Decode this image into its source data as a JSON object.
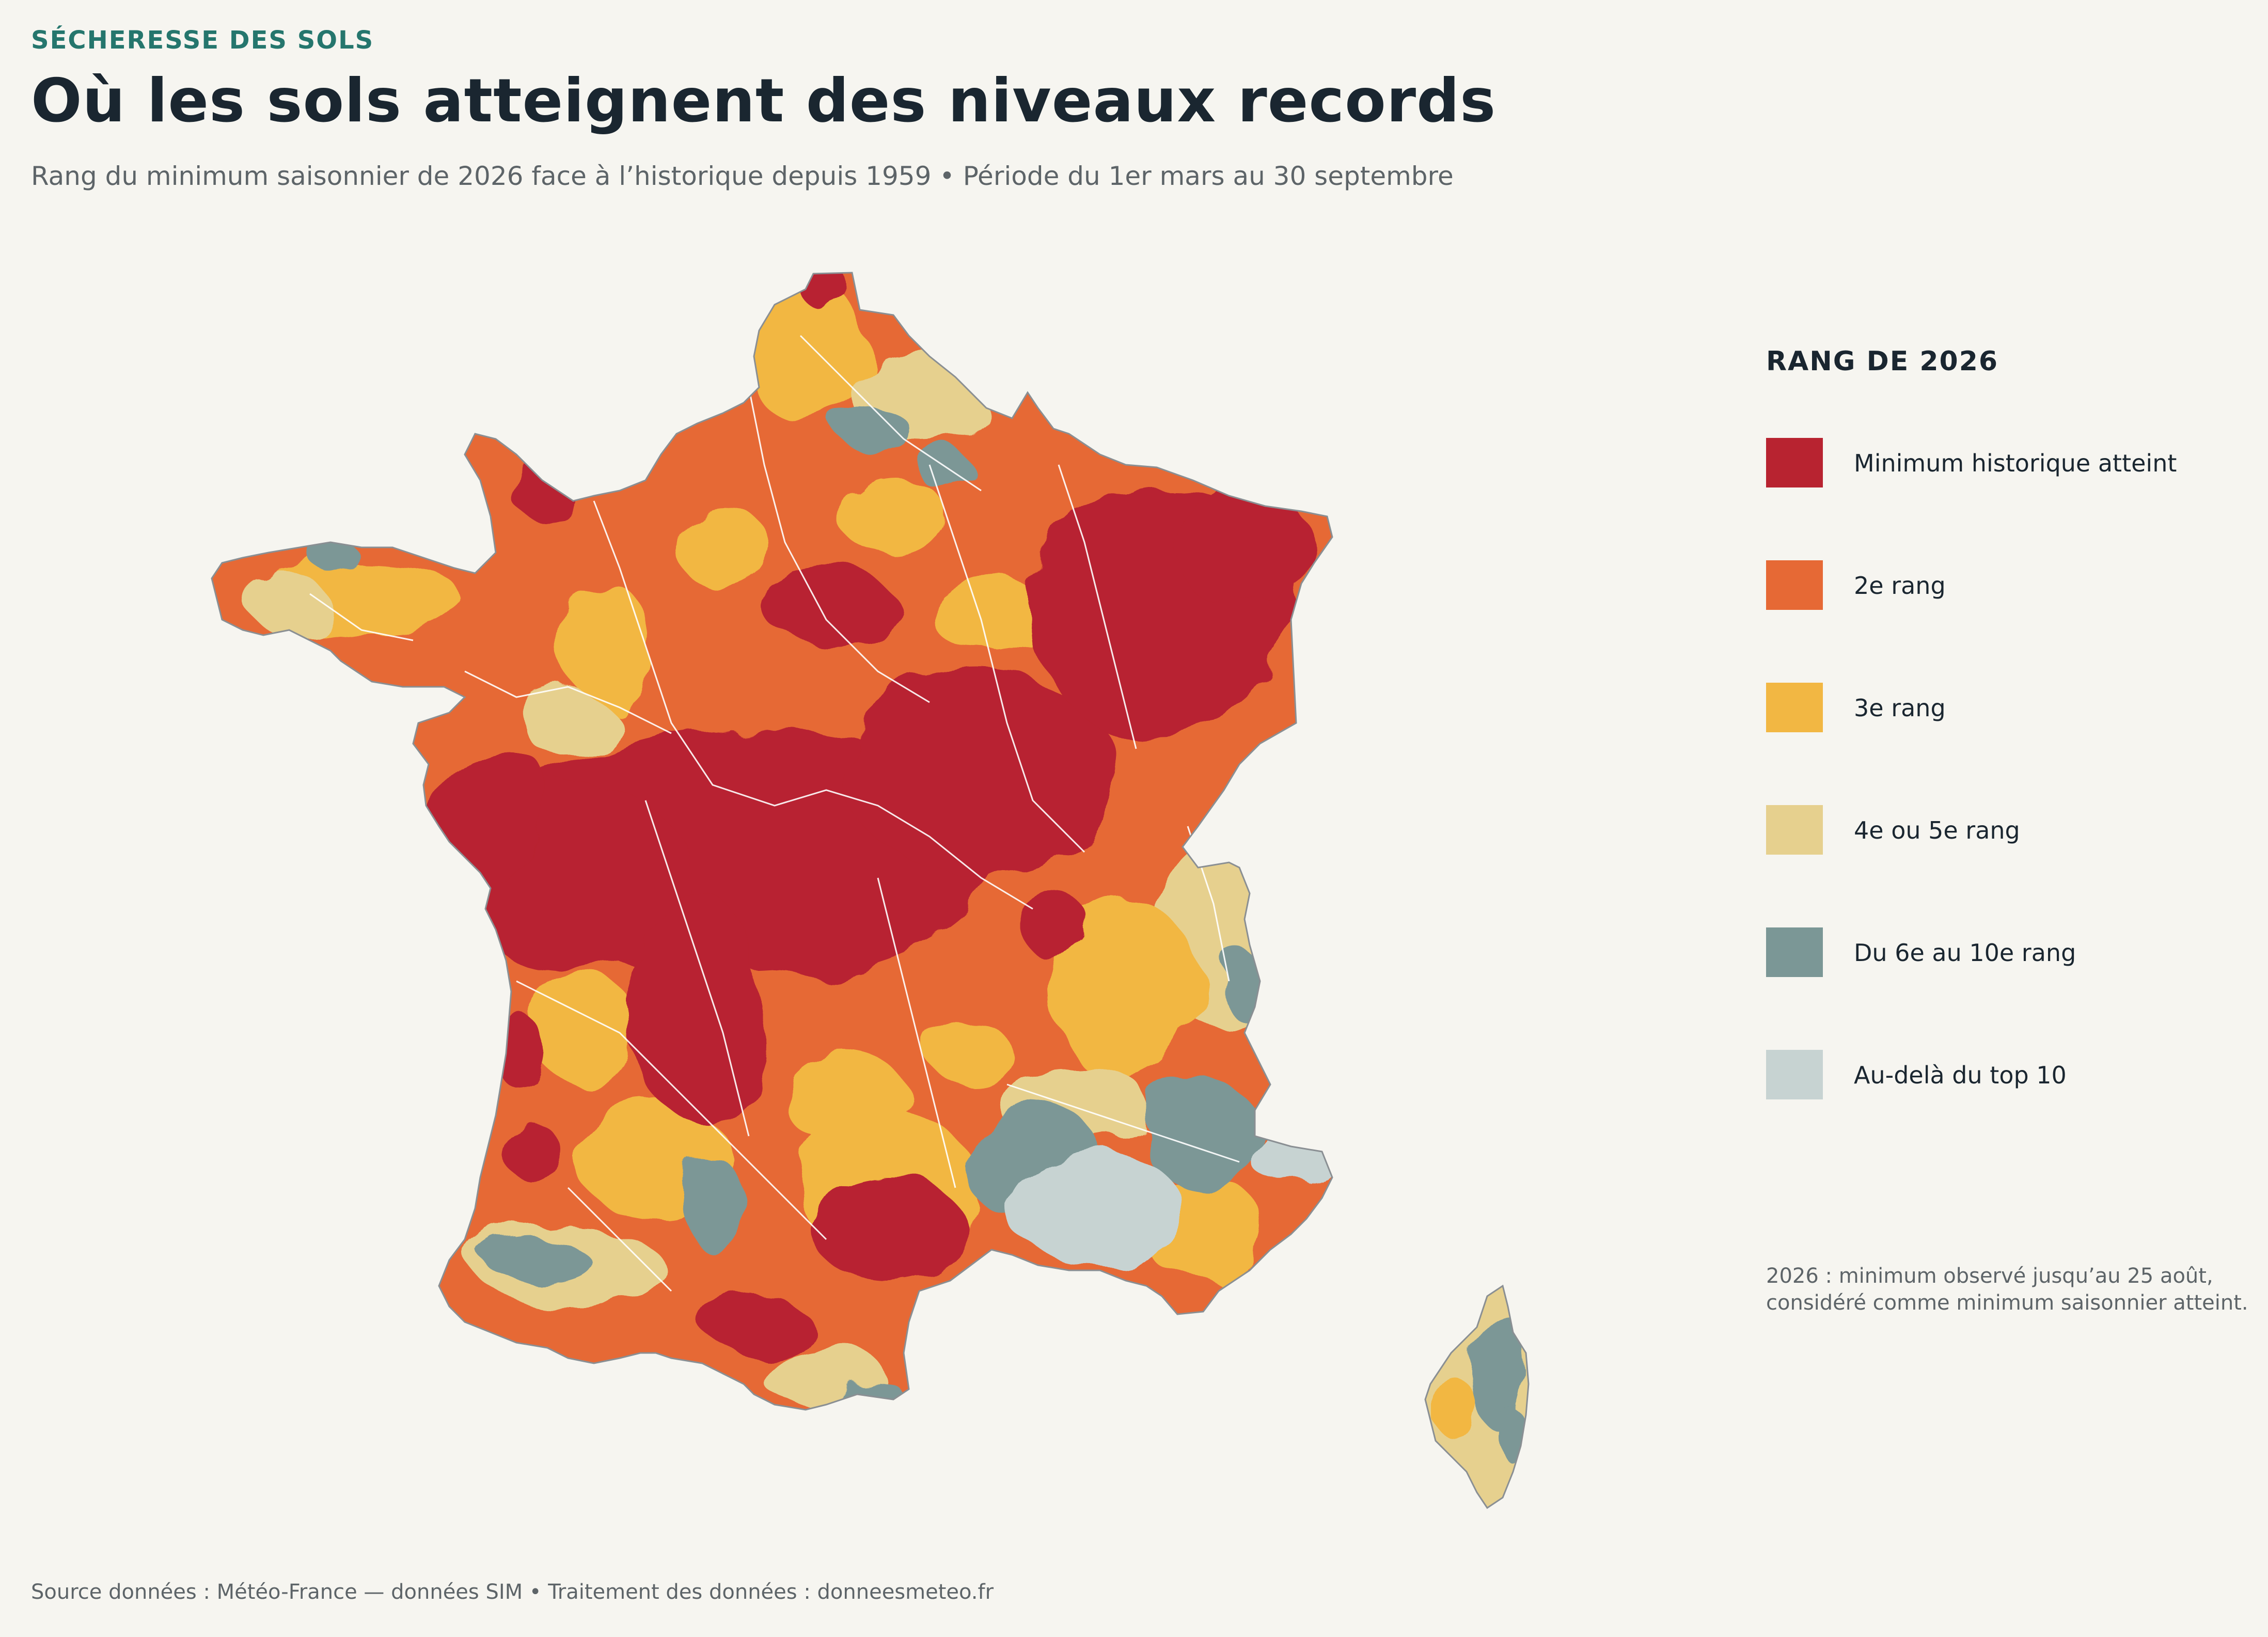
{
  "header": {
    "kicker": "SÉCHERESSE DES SOLS",
    "title": "Où les sols atteignent des niveaux records",
    "subtitle": "Rang du minimum saisonnier de 2026 face à l’historique depuis 1959  •  Période du 1er mars au 30 septembre"
  },
  "legend": {
    "title": "RANG DE 2026",
    "items": [
      {
        "label": "Minimum historique atteint",
        "color": "#b82330"
      },
      {
        "label": "2e rang",
        "color": "#e66935"
      },
      {
        "label": "3e rang",
        "color": "#f2b743"
      },
      {
        "label": "4e ou 5e rang",
        "color": "#e6d08e"
      },
      {
        "label": "Du 6e au 10e rang",
        "color": "#7b9796"
      },
      {
        "label": "Au-delà du top 10",
        "color": "#c7d3d2"
      }
    ]
  },
  "note": {
    "line1": "2026 : minimum observé jusqu’au 25 août,",
    "line2": "considéré comme minimum saisonnier atteint."
  },
  "footer": {
    "text": "Source données : Météo-France — données SIM  •  Traitement des données : donneesmeteo.fr"
  },
  "map": {
    "regions": [
      "France métropolitaine",
      "Corse"
    ]
  }
}
